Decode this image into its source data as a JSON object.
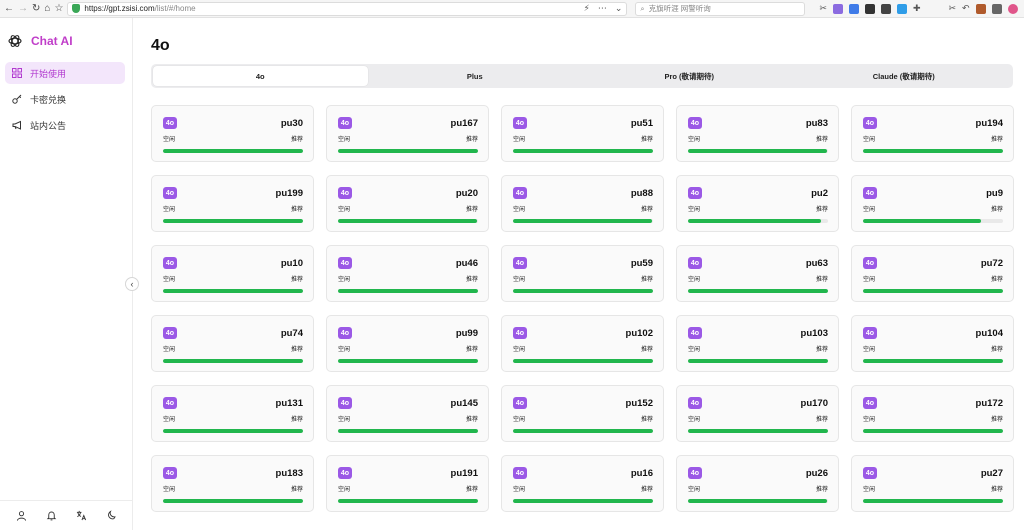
{
  "browser": {
    "url_host": "https://gpt.zsisi.com",
    "url_path": "/list/#/home",
    "search_placeholder": "克旗听涯 网警听询"
  },
  "app": {
    "name": "Chat AI"
  },
  "sidebar": {
    "items": [
      {
        "label": "开始使用",
        "icon": "grid-icon",
        "active": true
      },
      {
        "label": "卡密兑换",
        "icon": "key-icon",
        "active": false
      },
      {
        "label": "站内公告",
        "icon": "megaphone-icon",
        "active": false
      }
    ],
    "collapse_glyph": "‹",
    "footer_icons": [
      "user-icon",
      "bell-icon",
      "translate-icon",
      "moon-icon"
    ]
  },
  "page": {
    "title": "4o"
  },
  "tabs": [
    {
      "label": "4o",
      "active": true
    },
    {
      "label": "Plus",
      "active": false
    },
    {
      "label": "Pro (敬请期待)",
      "active": false
    },
    {
      "label": "Claude (敬请期待)",
      "active": false
    }
  ],
  "cards": [
    {
      "badge": "4o",
      "name": "pu30",
      "status": "空闲",
      "tag": "推荐",
      "load": 1.0
    },
    {
      "badge": "4o",
      "name": "pu167",
      "status": "空闲",
      "tag": "推荐",
      "load": 1.0
    },
    {
      "badge": "4o",
      "name": "pu51",
      "status": "空闲",
      "tag": "推荐",
      "load": 1.0
    },
    {
      "badge": "4o",
      "name": "pu83",
      "status": "空闲",
      "tag": "推荐",
      "load": 0.99
    },
    {
      "badge": "4o",
      "name": "pu194",
      "status": "空闲",
      "tag": "推荐",
      "load": 1.0
    },
    {
      "badge": "4o",
      "name": "pu199",
      "status": "空闲",
      "tag": "推荐",
      "load": 1.0
    },
    {
      "badge": "4o",
      "name": "pu20",
      "status": "空闲",
      "tag": "推荐",
      "load": 0.99
    },
    {
      "badge": "4o",
      "name": "pu88",
      "status": "空闲",
      "tag": "推荐",
      "load": 0.99
    },
    {
      "badge": "4o",
      "name": "pu2",
      "status": "空闲",
      "tag": "推荐",
      "load": 0.95
    },
    {
      "badge": "4o",
      "name": "pu9",
      "status": "空闲",
      "tag": "推荐",
      "load": 0.84
    },
    {
      "badge": "4o",
      "name": "pu10",
      "status": "空闲",
      "tag": "推荐",
      "load": 1.0
    },
    {
      "badge": "4o",
      "name": "pu46",
      "status": "空闲",
      "tag": "推荐",
      "load": 1.0
    },
    {
      "badge": "4o",
      "name": "pu59",
      "status": "空闲",
      "tag": "推荐",
      "load": 1.0
    },
    {
      "badge": "4o",
      "name": "pu63",
      "status": "空闲",
      "tag": "推荐",
      "load": 1.0
    },
    {
      "badge": "4o",
      "name": "pu72",
      "status": "空闲",
      "tag": "推荐",
      "load": 1.0
    },
    {
      "badge": "4o",
      "name": "pu74",
      "status": "空闲",
      "tag": "推荐",
      "load": 1.0
    },
    {
      "badge": "4o",
      "name": "pu99",
      "status": "空闲",
      "tag": "推荐",
      "load": 1.0
    },
    {
      "badge": "4o",
      "name": "pu102",
      "status": "空闲",
      "tag": "推荐",
      "load": 1.0
    },
    {
      "badge": "4o",
      "name": "pu103",
      "status": "空闲",
      "tag": "推荐",
      "load": 1.0
    },
    {
      "badge": "4o",
      "name": "pu104",
      "status": "空闲",
      "tag": "推荐",
      "load": 1.0
    },
    {
      "badge": "4o",
      "name": "pu131",
      "status": "空闲",
      "tag": "推荐",
      "load": 1.0
    },
    {
      "badge": "4o",
      "name": "pu145",
      "status": "空闲",
      "tag": "推荐",
      "load": 1.0
    },
    {
      "badge": "4o",
      "name": "pu152",
      "status": "空闲",
      "tag": "推荐",
      "load": 1.0
    },
    {
      "badge": "4o",
      "name": "pu170",
      "status": "空闲",
      "tag": "推荐",
      "load": 1.0
    },
    {
      "badge": "4o",
      "name": "pu172",
      "status": "空闲",
      "tag": "推荐",
      "load": 1.0
    },
    {
      "badge": "4o",
      "name": "pu183",
      "status": "空闲",
      "tag": "推荐",
      "load": 1.0
    },
    {
      "badge": "4o",
      "name": "pu191",
      "status": "空闲",
      "tag": "推荐",
      "load": 1.0
    },
    {
      "badge": "4o",
      "name": "pu16",
      "status": "空闲",
      "tag": "推荐",
      "load": 1.0
    },
    {
      "badge": "4o",
      "name": "pu26",
      "status": "空闲",
      "tag": "推荐",
      "load": 0.99
    },
    {
      "badge": "4o",
      "name": "pu27",
      "status": "空闲",
      "tag": "推荐",
      "load": 1.0
    }
  ],
  "colors": {
    "accent": "#b23bd0",
    "badge": "#9b59e6",
    "bar": "#21b64d"
  }
}
